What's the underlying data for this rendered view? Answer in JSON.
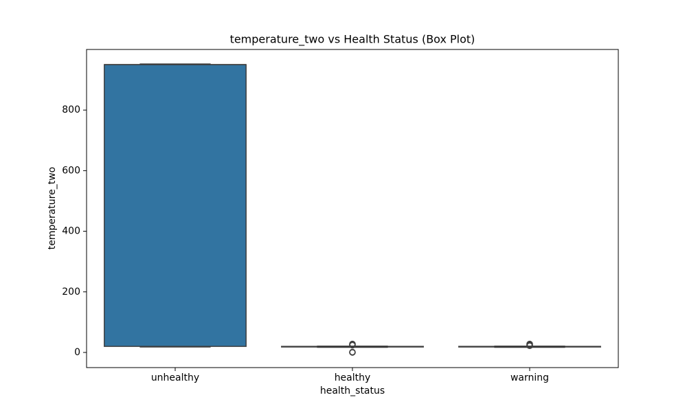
{
  "chart_data": {
    "type": "box",
    "title": "temperature_two vs Health Status (Box Plot)",
    "x_label": "health_status",
    "y_label": "temperature_two",
    "categories": [
      "unhealthy",
      "healthy",
      "warning"
    ],
    "color": "#3274a1",
    "boxes": [
      {
        "whislo": 18,
        "q1": 20,
        "median": 950,
        "q3": 950,
        "whishi": 952,
        "fliers": []
      },
      {
        "whislo": 17,
        "q1": 18,
        "median": 19,
        "q3": 20,
        "whishi": 21,
        "fliers": [
          0,
          1,
          24,
          26,
          28
        ]
      },
      {
        "whislo": 17,
        "q1": 18,
        "median": 19,
        "q3": 20,
        "whishi": 21,
        "fliers": [
          22,
          24,
          26,
          28
        ]
      }
    ],
    "ylim": [
      -50,
      1000
    ],
    "yticks": [
      0,
      200,
      400,
      600,
      800
    ]
  }
}
